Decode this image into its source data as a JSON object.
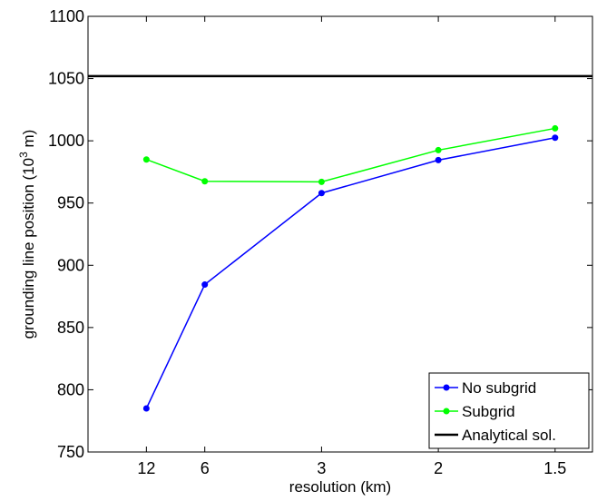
{
  "chart_data": {
    "type": "line",
    "xlabel": "resolution (km)",
    "ylabel": "grounding line position (10",
    "ylabel_sup": "3",
    "ylabel_end": " m)",
    "categories": [
      "12",
      "6",
      "3",
      "2",
      "1.5"
    ],
    "x": [
      0.08333,
      0.16667,
      0.33333,
      0.5,
      0.66667
    ],
    "xlim": [
      0.0,
      0.72
    ],
    "ylim": [
      750,
      1100
    ],
    "yticks": [
      750,
      800,
      850,
      900,
      950,
      1000,
      1050,
      1100
    ],
    "grid": false,
    "legend_position": "bottom-right",
    "series": [
      {
        "name": "No subgrid",
        "color": "#0000ff",
        "marker": "dot",
        "values": [
          785,
          884.5,
          958,
          984.5,
          1002.5
        ]
      },
      {
        "name": "Subgrid",
        "color": "#00ff00",
        "marker": "dot",
        "values": [
          985,
          967.5,
          967,
          992.5,
          1010
        ]
      },
      {
        "name": "Analytical sol.",
        "color": "#000000",
        "marker": "none",
        "values": [
          1052,
          1052,
          1052,
          1052,
          1052
        ],
        "span": "full"
      }
    ]
  }
}
